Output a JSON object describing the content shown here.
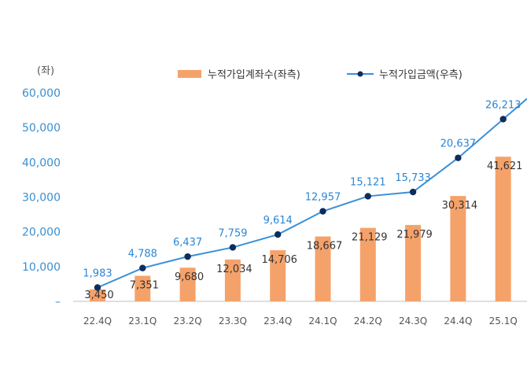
{
  "chart_data": {
    "type": "bar",
    "unit_label": "(좌)",
    "categories": [
      "22.4Q",
      "23.1Q",
      "23.2Q",
      "23.3Q",
      "23.4Q",
      "24.1Q",
      "24.2Q",
      "24.3Q",
      "24.4Q",
      "25.1Q"
    ],
    "series": [
      {
        "name": "누적가입계좌수(좌측)",
        "type": "bar",
        "axis": "left",
        "values": [
          3450,
          7351,
          9680,
          12034,
          14706,
          18667,
          21129,
          21979,
          30314,
          41621
        ],
        "labels": [
          "3,450",
          "7,351",
          "9,680",
          "12,034",
          "14,706",
          "18,667",
          "21,129",
          "21,979",
          "30,314",
          "41,621"
        ]
      },
      {
        "name": "누적가입금액(우측)",
        "type": "line",
        "axis": "right",
        "values": [
          1983,
          4788,
          6437,
          7759,
          9614,
          12957,
          15121,
          15733,
          20637,
          26213
        ],
        "labels": [
          "1,983",
          "4,788",
          "6,437",
          "7,759",
          "9,614",
          "12,957",
          "15,121",
          "15,733",
          "20,637",
          "26,213"
        ]
      }
    ],
    "y_ticks": [
      "60,000",
      "50,000",
      "40,000",
      "30,000",
      "20,000",
      "10,000",
      "–"
    ],
    "ylim": [
      0,
      60000
    ],
    "right_ylim": [
      0,
      30000
    ],
    "legend_position": "top-right",
    "colors": {
      "bar": "#f5a26a",
      "line": "#3a8fd8",
      "marker": "#0d2d5e",
      "tick": "#3a8fd0"
    }
  }
}
